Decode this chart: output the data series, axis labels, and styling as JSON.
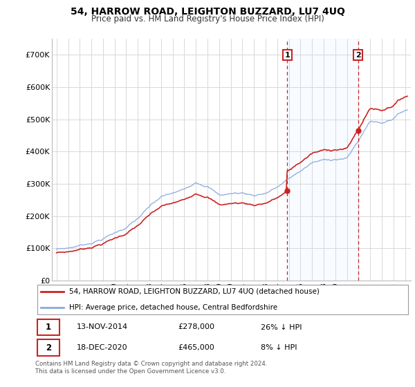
{
  "title": "54, HARROW ROAD, LEIGHTON BUZZARD, LU7 4UQ",
  "subtitle": "Price paid vs. HM Land Registry's House Price Index (HPI)",
  "ylim": [
    0,
    750000
  ],
  "background_color": "#ffffff",
  "plot_bg_color": "#ffffff",
  "grid_color": "#d8d8d8",
  "legend_line1": "54, HARROW ROAD, LEIGHTON BUZZARD, LU7 4UQ (detached house)",
  "legend_line2": "HPI: Average price, detached house, Central Bedfordshire",
  "sale1_date": "13-NOV-2014",
  "sale1_price": "£278,000",
  "sale1_hpi": "26% ↓ HPI",
  "sale2_date": "18-DEC-2020",
  "sale2_price": "£465,000",
  "sale2_hpi": "8% ↓ HPI",
  "note": "Contains HM Land Registry data © Crown copyright and database right 2024.\nThis data is licensed under the Open Government Licence v3.0.",
  "sale1_year": 2014.87,
  "sale2_year": 2020.96,
  "sale1_value": 278000,
  "sale2_value": 465000,
  "red_color": "#cc2222",
  "blue_color": "#88aadd",
  "shade_color": "#ddeeff",
  "vline_color": "#cc2222"
}
